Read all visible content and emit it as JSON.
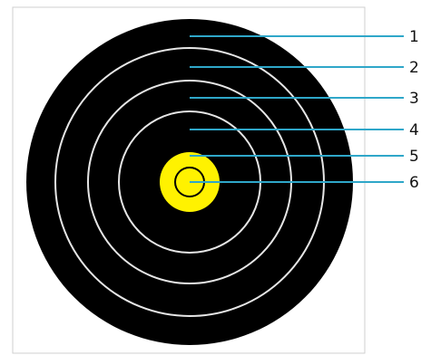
{
  "diagram": {
    "colors": {
      "background": "#ffffff",
      "frame": "#cfcfcf",
      "target": "#000000",
      "ring_lines": "#e6e6e6",
      "bullseye": "#fff200",
      "inner_ring": "#000000",
      "leaders": "#2fa7c9"
    },
    "rings": [
      {
        "label": "1"
      },
      {
        "label": "2"
      },
      {
        "label": "3"
      },
      {
        "label": "4"
      },
      {
        "label": "5"
      },
      {
        "label": "6"
      }
    ]
  }
}
